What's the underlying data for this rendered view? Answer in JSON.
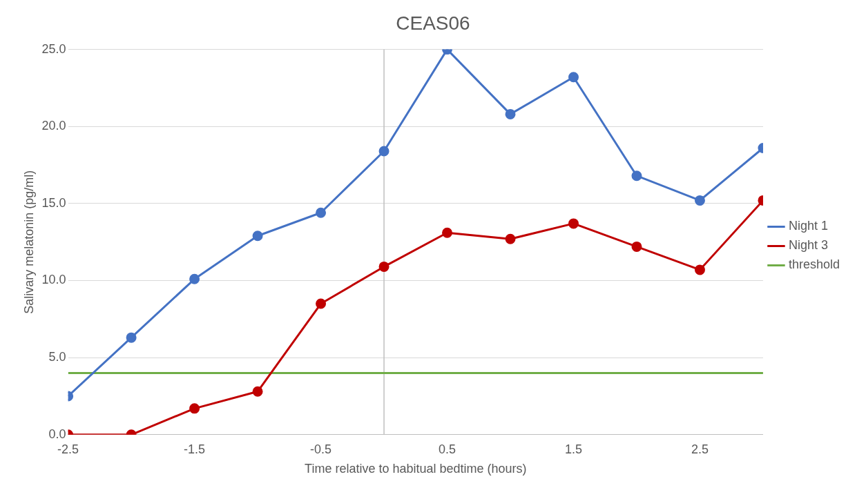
{
  "chart_data": {
    "type": "line",
    "title": "CEAS06",
    "xlabel": "Time relative to habitual bedtime (hours)",
    "ylabel": "Salivary melatonin (pg/ml)",
    "xlim": [
      -2.5,
      3.0
    ],
    "xticks": [
      -2.5,
      -1.5,
      -0.5,
      0.5,
      1.5,
      2.5
    ],
    "ylim": [
      0,
      25
    ],
    "yticks": [
      {
        "value": 0,
        "label": "0.0"
      },
      {
        "value": 5,
        "label": "5.0"
      },
      {
        "value": 10,
        "label": "10.0"
      },
      {
        "value": 15,
        "label": "15.0"
      },
      {
        "value": 20,
        "label": "20.0"
      },
      {
        "value": 25,
        "label": "25.0"
      }
    ],
    "grid": "y",
    "legend": "right",
    "marker": "circle",
    "line_style": "solid",
    "ref_lines": [
      {
        "axis": "x",
        "value": 0,
        "color": "#bfbfbf"
      }
    ],
    "series": [
      {
        "name": "Night 1",
        "color": "#4472c4",
        "x": [
          -2.5,
          -2,
          -1.5,
          -1,
          -0.5,
          0,
          0.5,
          1,
          1.5,
          2,
          2.5,
          3
        ],
        "values": [
          2.5,
          6.3,
          10.1,
          12.9,
          14.4,
          18.4,
          25.0,
          20.8,
          23.2,
          16.8,
          15.2,
          18.6
        ]
      },
      {
        "name": "Night 3",
        "color": "#c00000",
        "x": [
          -2.5,
          -2,
          -1.5,
          -1,
          -0.5,
          0,
          0.5,
          1,
          1.5,
          2,
          2.5,
          3
        ],
        "values": [
          0,
          0,
          1.7,
          2.8,
          8.5,
          10.9,
          13.1,
          12.7,
          13.7,
          12.2,
          10.7,
          15.2
        ]
      },
      {
        "name": "threshold",
        "color": "#70ad47",
        "marker": "none",
        "x": [
          -2.5,
          3
        ],
        "values": [
          4,
          4
        ]
      }
    ]
  }
}
